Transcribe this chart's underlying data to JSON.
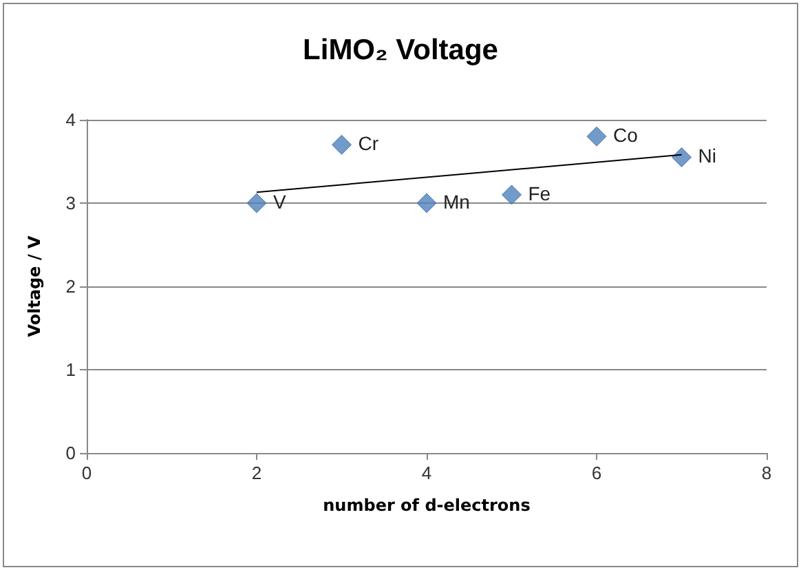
{
  "chart_data": {
    "type": "scatter",
    "title": "LiMO₂ Voltage",
    "xlabel": "number of d-electrons",
    "ylabel": "Voltage / V",
    "x": [
      2,
      3,
      4,
      5,
      6,
      7
    ],
    "series": [
      {
        "color": "#4f81bd",
        "values": [
          3.0,
          3.7,
          3.0,
          3.1,
          3.8,
          3.55
        ],
        "marker": "diamond"
      },
      {
        "type": "line",
        "color": "#000000",
        "x": [
          2,
          7
        ],
        "values": [
          3.13,
          3.58
        ],
        "marker": "none"
      }
    ],
    "annotations": [
      {
        "text": "V",
        "x": 2,
        "y": 3.0
      },
      {
        "text": "Cr",
        "x": 3,
        "y": 3.7
      },
      {
        "text": "Mn",
        "x": 4,
        "y": 3.0
      },
      {
        "text": "Fe",
        "x": 5,
        "y": 3.1
      },
      {
        "text": "Co",
        "x": 6,
        "y": 3.8
      },
      {
        "text": "Ni",
        "x": 7,
        "y": 3.55
      }
    ],
    "xlim": [
      0,
      8
    ],
    "xticks": [
      0,
      2,
      4,
      6,
      8
    ],
    "ylim": [
      0,
      4
    ],
    "yticks": [
      0,
      1,
      2,
      3,
      4
    ],
    "grid": "y"
  }
}
